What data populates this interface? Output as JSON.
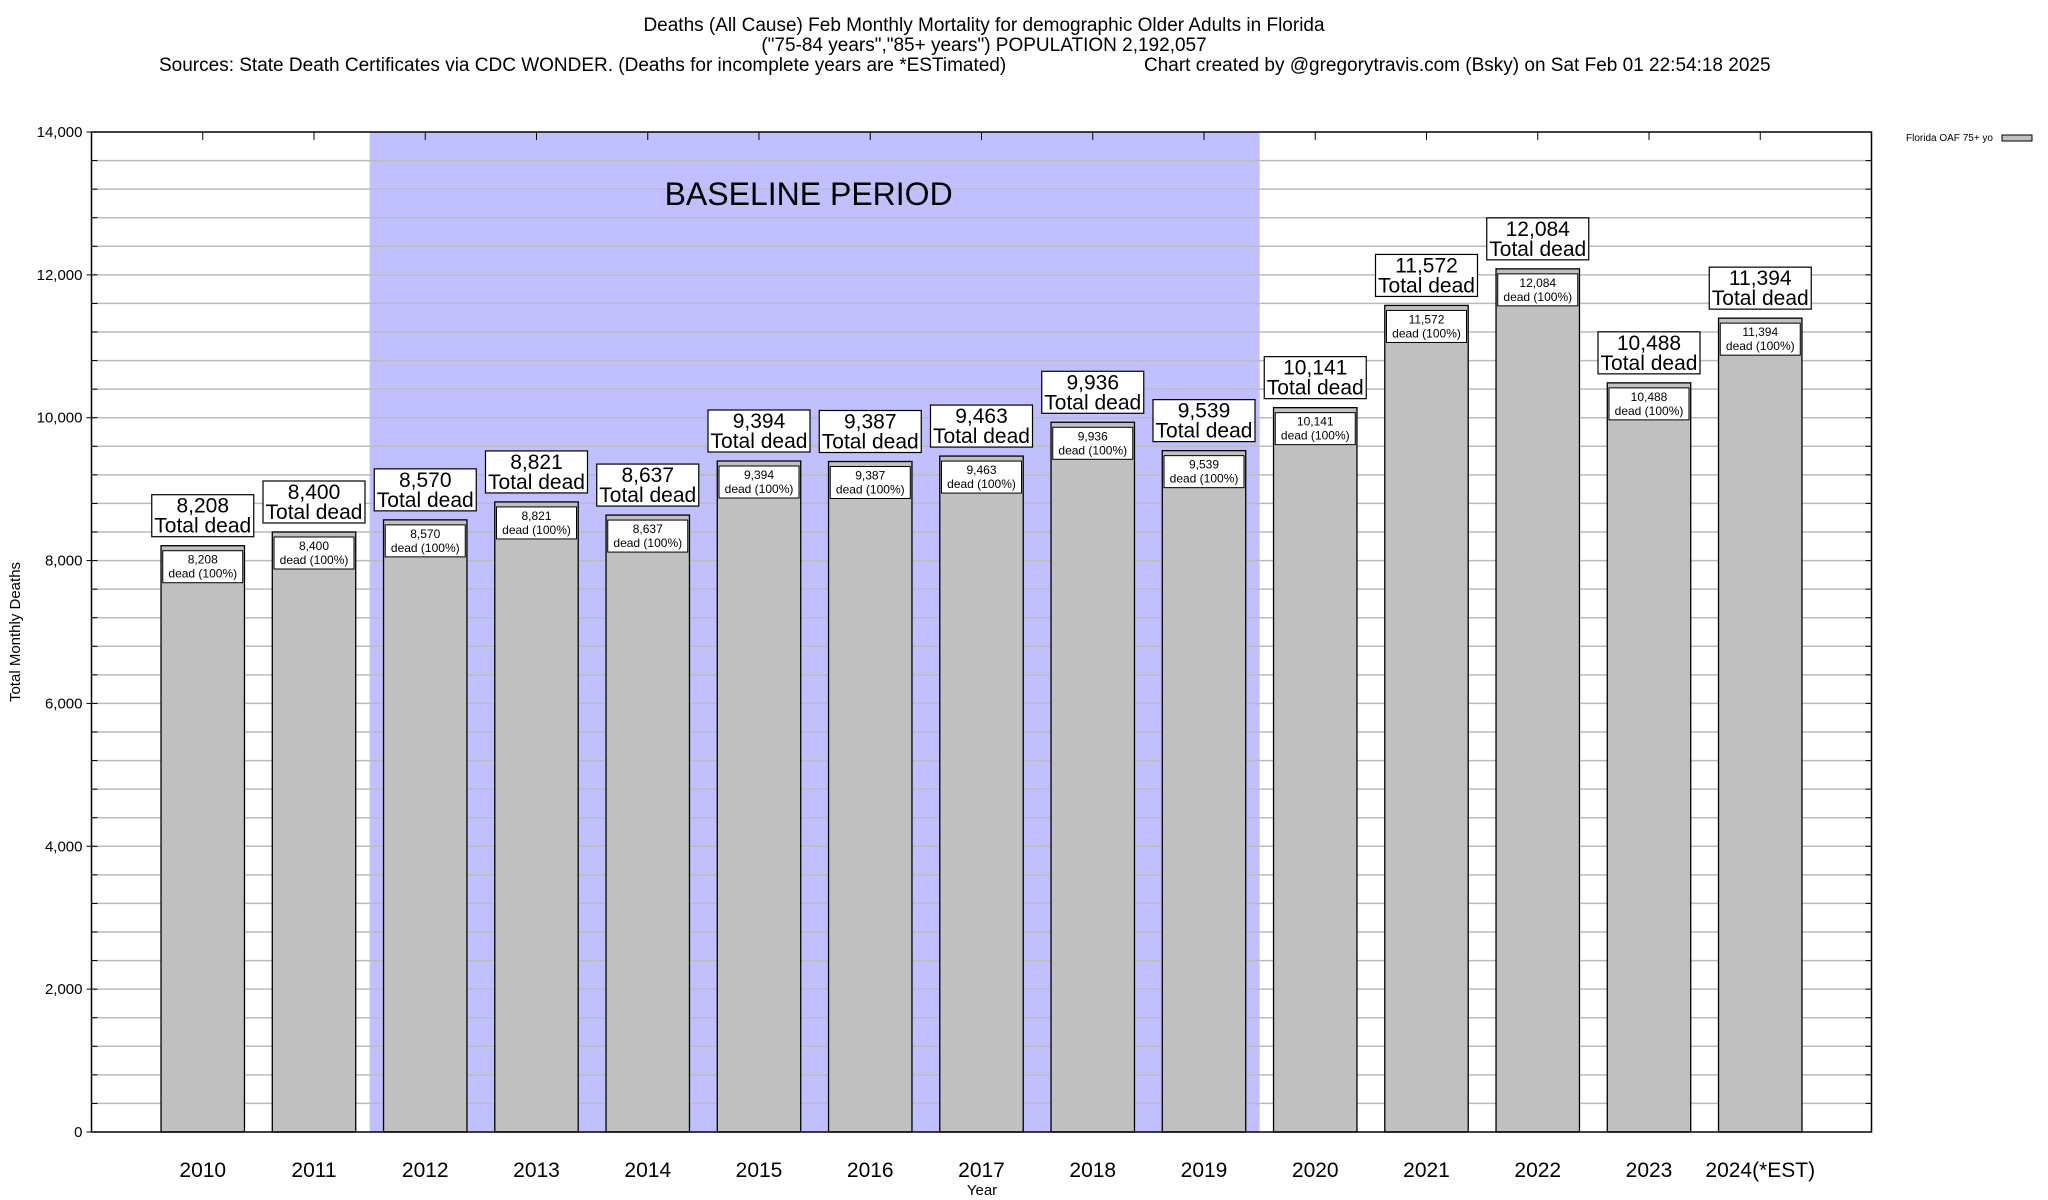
{
  "chart_data": {
    "type": "bar",
    "title_lines": [
      "Deaths (All Cause) Feb Monthly Mortality for demographic Older Adults in Florida",
      "(\"75-84 years\",\"85+ years\") POPULATION 2,192,057"
    ],
    "sources": "Sources: State Death Certificates via CDC WONDER. (Deaths for incomplete years are *ESTimated)",
    "credit": "Chart created by @gregorytravis.com (Bsky) on Sat Feb 01 22:54:18 2025",
    "xlabel": "Year",
    "ylabel": "Total Monthly Deaths",
    "ylim": [
      0,
      14000
    ],
    "yticks": [
      0,
      2000,
      4000,
      6000,
      8000,
      10000,
      12000,
      14000
    ],
    "ytick_labels": [
      "0",
      "2,000",
      "4,000",
      "6,000",
      "8,000",
      "10,000",
      "12,000",
      "14,000"
    ],
    "grid": true,
    "legend": {
      "position": "top-right",
      "entries": [
        "Florida OAF 75+ yo"
      ]
    },
    "categories": [
      "2010",
      "2011",
      "2012",
      "2013",
      "2014",
      "2015",
      "2016",
      "2017",
      "2018",
      "2019",
      "2020",
      "2021",
      "2022",
      "2023",
      "2024(*EST)"
    ],
    "series": [
      {
        "name": "Florida OAF 75+ yo",
        "color": "#c0c0c0",
        "values": [
          8208,
          8400,
          8570,
          8821,
          8637,
          9394,
          9387,
          9463,
          9936,
          9539,
          10141,
          11572,
          12084,
          10488,
          11394
        ]
      }
    ],
    "value_labels": [
      "8,208",
      "8,400",
      "8,570",
      "8,821",
      "8,637",
      "9,394",
      "9,387",
      "9,463",
      "9,936",
      "9,539",
      "10,141",
      "11,572",
      "12,084",
      "10,488",
      "11,394"
    ],
    "top_label_suffix": "Total dead",
    "inner_label_suffix": "dead (100%)",
    "baseline": {
      "label": "BASELINE PERIOD",
      "from": "2012",
      "to": "2019",
      "color": "#c0c0ff"
    }
  }
}
